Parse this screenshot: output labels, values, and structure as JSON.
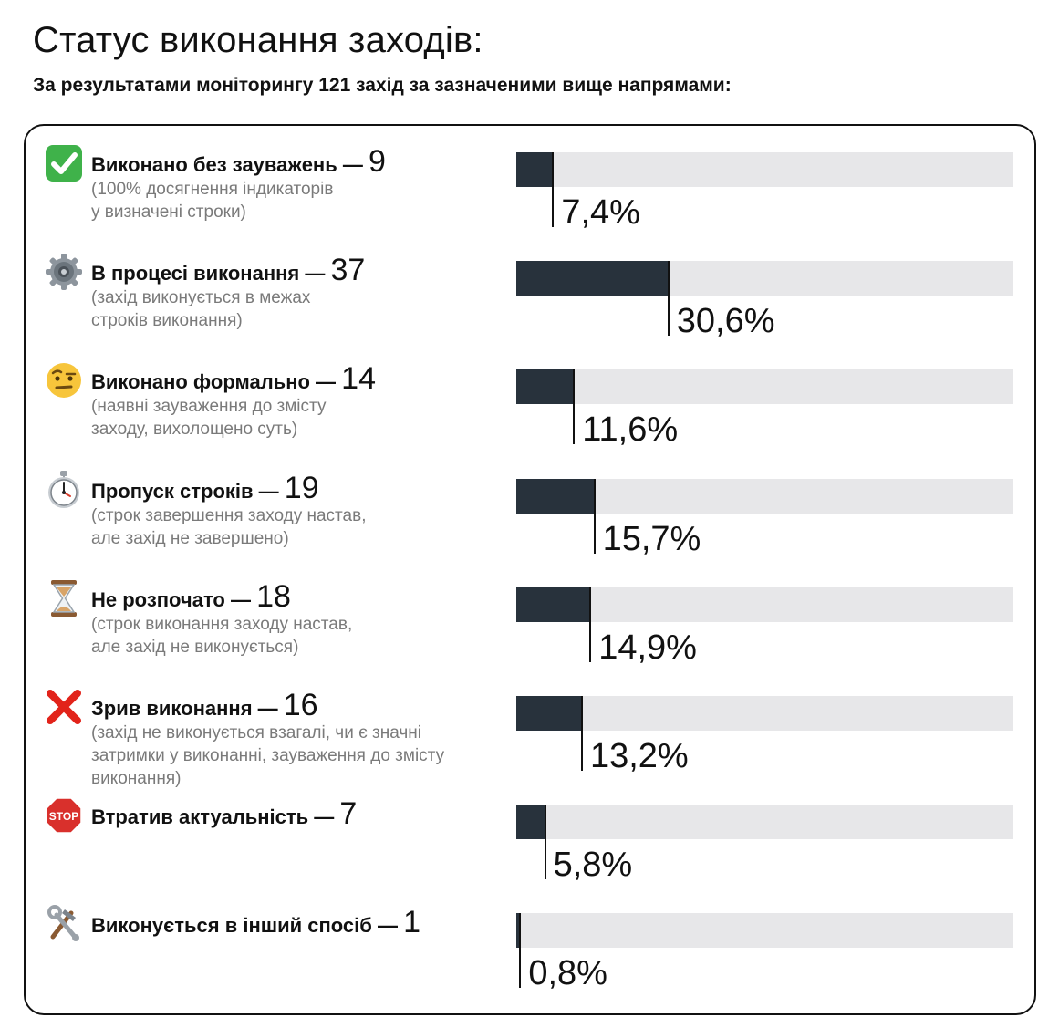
{
  "title": "Статус виконання заходів:",
  "subtitle": "За результатами моніторингу 121 захід за зазначеними вище напрямами:",
  "chart_data": {
    "type": "bar",
    "orientation": "horizontal",
    "total": 121,
    "xlim": [
      0,
      100
    ],
    "grid": false,
    "legend": "none",
    "items": [
      {
        "label": "Виконано без зауважень",
        "count": "9",
        "percent": 7.4,
        "percent_label": "7,4%",
        "icon": "check-mark-icon",
        "desc": [
          "(100% досягнення індикаторів",
          "у визначені строки)"
        ]
      },
      {
        "label": "В процесі виконання",
        "count": "37",
        "percent": 30.6,
        "percent_label": "30,6%",
        "icon": "gear-icon",
        "desc": [
          "(захід виконується в межах",
          "строків виконання)"
        ]
      },
      {
        "label": "Виконано формально",
        "count": "14",
        "percent": 11.6,
        "percent_label": "11,6%",
        "icon": "raised-eyebrow-face-icon",
        "desc": [
          "(наявні зауваження до змісту",
          "заходу, вихолощено суть)"
        ]
      },
      {
        "label": "Пропуск строків",
        "count": "19",
        "percent": 15.7,
        "percent_label": "15,7%",
        "icon": "stopwatch-icon",
        "desc": [
          "(строк завершення заходу настав,",
          "але захід не завершено)"
        ]
      },
      {
        "label": "Не розпочато",
        "count": "18",
        "percent": 14.9,
        "percent_label": "14,9%",
        "icon": "hourglass-icon",
        "desc": [
          "(строк виконання заходу настав,",
          "але захід не виконується)"
        ]
      },
      {
        "label": "Зрив виконання",
        "count": "16",
        "percent": 13.2,
        "percent_label": "13,2%",
        "icon": "cross-mark-icon",
        "desc": [
          "(захід не виконується взагалі, чи є значні",
          "затримки у виконанні, зауваження до змісту",
          "виконання)"
        ]
      },
      {
        "label": "Втратив актуальність",
        "count": "7",
        "percent": 5.8,
        "percent_label": "5,8%",
        "icon": "stop-sign-icon",
        "desc": []
      },
      {
        "label": "Виконується в інший спосіб",
        "count": "1",
        "percent": 0.8,
        "percent_label": "0,8%",
        "icon": "hammer-and-wrench-icon",
        "desc": []
      }
    ]
  },
  "colors": {
    "bar_fill": "#28323c",
    "bar_track": "#e7e7e9",
    "text": "#111111",
    "desc_text": "#7a7a7a"
  }
}
